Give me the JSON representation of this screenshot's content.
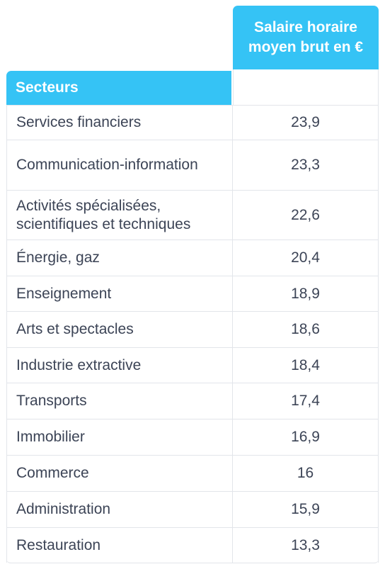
{
  "table": {
    "column_header_value": "Salaire horaire moyen brut en €",
    "column_header_sector": "Secteurs"
  },
  "chart_data": {
    "type": "table",
    "columns": [
      "Secteurs",
      "Salaire horaire moyen brut en €"
    ],
    "rows": [
      {
        "label": "Services financiers",
        "value": "23,9"
      },
      {
        "label": "Communication-information",
        "value": "23,3"
      },
      {
        "label": "Activités spécialisées, scientifiques et techniques",
        "value": "22,6"
      },
      {
        "label": "Énergie, gaz",
        "value": "20,4"
      },
      {
        "label": "Enseignement",
        "value": "18,9"
      },
      {
        "label": "Arts et spectacles",
        "value": "18,6"
      },
      {
        "label": "Industrie extractive",
        "value": "18,4"
      },
      {
        "label": "Transports",
        "value": "17,4"
      },
      {
        "label": "Immobilier",
        "value": "16,9"
      },
      {
        "label": "Commerce",
        "value": "16"
      },
      {
        "label": "Administration",
        "value": "15,9"
      },
      {
        "label": "Restauration",
        "value": "13,3"
      }
    ]
  }
}
